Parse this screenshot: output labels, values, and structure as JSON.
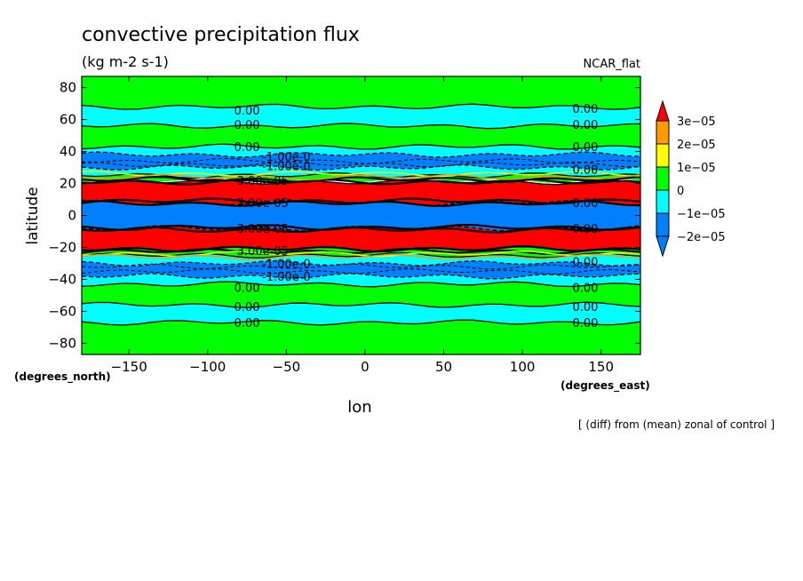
{
  "chart_data": {
    "type": "heatmap",
    "title": "convective precipitation flux",
    "units": "(kg m-2 s-1)",
    "model_label": "NCAR_flat",
    "xlabel": "lon",
    "ylabel": "latitude",
    "x_unit_label": "(degrees_east)",
    "y_unit_label": "(degrees_north)",
    "footnote": "[ (diff) from (mean) zonal of control ]",
    "xlim": [
      -180,
      175
    ],
    "ylim": [
      -87,
      87
    ],
    "x_ticks": [
      -150,
      -100,
      -50,
      0,
      50,
      100,
      150
    ],
    "y_ticks": [
      80,
      60,
      40,
      20,
      0,
      -20,
      -40,
      -60,
      -80
    ],
    "x_tick_labels": [
      "−150",
      "−100",
      "−50",
      "0",
      "50",
      "100",
      "150"
    ],
    "y_tick_labels": [
      "80",
      "60",
      "40",
      "20",
      "0",
      "−20",
      "−40",
      "−60",
      "−80"
    ],
    "colorbar": {
      "labels": [
        "3e−05",
        "2e−05",
        "1e−05",
        "0",
        "−1e−05",
        "−2e−05"
      ],
      "colors": [
        "#0080ff",
        "#00ffff",
        "#00ff00",
        "#ffff00",
        "#ff9900",
        "#ff0000"
      ]
    },
    "bands": [
      {
        "lat_min": 68,
        "lat_max": 87,
        "value": "0 to 1e-05",
        "color": "#00ff00"
      },
      {
        "lat_min": 56,
        "lat_max": 68,
        "value": "-1e-05 to 0",
        "color": "#00ffff"
      },
      {
        "lat_min": 43,
        "lat_max": 56,
        "value": "0 to 1e-05",
        "color": "#00ff00"
      },
      {
        "lat_min": 38,
        "lat_max": 43,
        "value": "-1e-05 to 0",
        "color": "#00ffff"
      },
      {
        "lat_min": 30,
        "lat_max": 38,
        "value": "-2e-05 to -1e-05",
        "color": "#0080ff"
      },
      {
        "lat_min": 25,
        "lat_max": 30,
        "value": "-1e-05 to 0",
        "color": "#00ffff"
      },
      {
        "lat_min": 22,
        "lat_max": 25,
        "value": "0 to 1e-05",
        "color": "#00ff00"
      },
      {
        "lat_min": 8,
        "lat_max": 21,
        "value": "> 3e-05",
        "color": "#ff0000"
      },
      {
        "lat_min": -8,
        "lat_max": 8,
        "value": "< -2e-05",
        "color": "#0080ff"
      },
      {
        "lat_min": -21,
        "lat_max": -8,
        "value": "> 3e-05",
        "color": "#ff0000"
      },
      {
        "lat_min": -25,
        "lat_max": -21,
        "value": "0 to 1e-05",
        "color": "#00ff00"
      },
      {
        "lat_min": -30,
        "lat_max": -25,
        "value": "-1e-05 to 0",
        "color": "#00ffff"
      },
      {
        "lat_min": -38,
        "lat_max": -30,
        "value": "-2e-05 to -1e-05",
        "color": "#0080ff"
      },
      {
        "lat_min": -43,
        "lat_max": -38,
        "value": "-1e-05 to 0",
        "color": "#00ffff"
      },
      {
        "lat_min": -56,
        "lat_max": -43,
        "value": "0 to 1e-05",
        "color": "#00ff00"
      },
      {
        "lat_min": -67,
        "lat_max": -56,
        "value": "-1e-05 to 0",
        "color": "#00ffff"
      },
      {
        "lat_min": -87,
        "lat_max": -67,
        "value": "0 to 1e-05",
        "color": "#00ff00"
      }
    ],
    "contour_labels": [
      {
        "text": "0.00",
        "lon": -75,
        "lat": 66
      },
      {
        "text": "0.00",
        "lon": -75,
        "lat": 57
      },
      {
        "text": "0.00",
        "lon": -75,
        "lat": 43
      },
      {
        "text": "-1.00e-0",
        "lon": -50,
        "lat": 37
      },
      {
        "text": "-1.00e-0",
        "lon": -50,
        "lat": 31
      },
      {
        "text": "0.00",
        "lon": 140,
        "lat": 67
      },
      {
        "text": "0.00",
        "lon": 140,
        "lat": 57
      },
      {
        "text": "0.00",
        "lon": 140,
        "lat": 43
      },
      {
        "text": "0.00",
        "lon": 140,
        "lat": 29
      },
      {
        "text": "0.00",
        "lon": 140,
        "lat": 8
      },
      {
        "text": "0.00",
        "lon": 140,
        "lat": -8
      },
      {
        "text": "0.00",
        "lon": 140,
        "lat": -29
      },
      {
        "text": "0.00",
        "lon": -75,
        "lat": -45
      },
      {
        "text": "0.00",
        "lon": -75,
        "lat": -57
      },
      {
        "text": "0.00",
        "lon": -75,
        "lat": -67
      },
      {
        "text": "-1.00e-0",
        "lon": -50,
        "lat": -30
      },
      {
        "text": "-1.00e-0",
        "lon": -50,
        "lat": -38
      },
      {
        "text": "0.00",
        "lon": 140,
        "lat": -45
      },
      {
        "text": "0.00",
        "lon": 140,
        "lat": -57
      },
      {
        "text": "0.00",
        "lon": 140,
        "lat": -67
      },
      {
        "text": "3.00e-05",
        "lon": -65,
        "lat": 22
      },
      {
        "text": "3.00e-05",
        "lon": -65,
        "lat": 8
      },
      {
        "text": "3.00e-05",
        "lon": -65,
        "lat": -8
      },
      {
        "text": "3.00e-05",
        "lon": -65,
        "lat": -22
      }
    ]
  }
}
